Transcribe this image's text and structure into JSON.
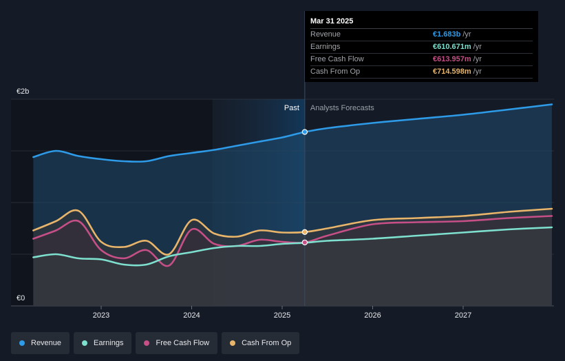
{
  "chart_data": {
    "type": "area",
    "yaxis": {
      "top_label": "€2b",
      "bottom_label": "€0",
      "ylim": [
        0,
        2
      ],
      "unit": "€b"
    },
    "xaxis": {
      "ticks": [
        "2023",
        "2024",
        "2025",
        "2026",
        "2027"
      ],
      "xlim": [
        2022.25,
        2027.98
      ]
    },
    "sections": {
      "past_label": "Past",
      "forecast_label": "Analysts Forecasts",
      "divider_x": 2025.25,
      "highlight_start_x": 2024.23
    },
    "series": [
      {
        "name": "Revenue",
        "color": "#2e9be8",
        "points": [
          [
            2022.25,
            1.44
          ],
          [
            2022.5,
            1.5
          ],
          [
            2022.75,
            1.45
          ],
          [
            2023.0,
            1.42
          ],
          [
            2023.25,
            1.4
          ],
          [
            2023.5,
            1.4
          ],
          [
            2023.75,
            1.45
          ],
          [
            2024.0,
            1.48
          ],
          [
            2024.25,
            1.51
          ],
          [
            2024.5,
            1.55
          ],
          [
            2024.75,
            1.59
          ],
          [
            2025.0,
            1.63
          ],
          [
            2025.25,
            1.683
          ],
          [
            2025.5,
            1.72
          ],
          [
            2026.0,
            1.77
          ],
          [
            2026.5,
            1.81
          ],
          [
            2027.0,
            1.85
          ],
          [
            2027.5,
            1.9
          ],
          [
            2027.98,
            1.95
          ]
        ]
      },
      {
        "name": "Cash From Op",
        "color": "#e8b56a",
        "points": [
          [
            2022.25,
            0.73
          ],
          [
            2022.5,
            0.82
          ],
          [
            2022.75,
            0.92
          ],
          [
            2023.0,
            0.62
          ],
          [
            2023.25,
            0.57
          ],
          [
            2023.5,
            0.63
          ],
          [
            2023.75,
            0.5
          ],
          [
            2024.0,
            0.83
          ],
          [
            2024.25,
            0.7
          ],
          [
            2024.5,
            0.67
          ],
          [
            2024.75,
            0.73
          ],
          [
            2025.0,
            0.71
          ],
          [
            2025.25,
            0.7146
          ],
          [
            2025.5,
            0.75
          ],
          [
            2026.0,
            0.83
          ],
          [
            2026.5,
            0.85
          ],
          [
            2027.0,
            0.87
          ],
          [
            2027.5,
            0.91
          ],
          [
            2027.98,
            0.94
          ]
        ]
      },
      {
        "name": "Free Cash Flow",
        "color": "#c54f86",
        "points": [
          [
            2022.25,
            0.65
          ],
          [
            2022.5,
            0.73
          ],
          [
            2022.75,
            0.82
          ],
          [
            2023.0,
            0.54
          ],
          [
            2023.25,
            0.46
          ],
          [
            2023.5,
            0.54
          ],
          [
            2023.75,
            0.39
          ],
          [
            2024.0,
            0.74
          ],
          [
            2024.25,
            0.6
          ],
          [
            2024.5,
            0.58
          ],
          [
            2024.75,
            0.64
          ],
          [
            2025.0,
            0.62
          ],
          [
            2025.25,
            0.614
          ],
          [
            2025.5,
            0.68
          ],
          [
            2026.0,
            0.79
          ],
          [
            2026.5,
            0.81
          ],
          [
            2027.0,
            0.82
          ],
          [
            2027.5,
            0.85
          ],
          [
            2027.98,
            0.87
          ]
        ]
      },
      {
        "name": "Earnings",
        "color": "#7ee0cf",
        "points": [
          [
            2022.25,
            0.47
          ],
          [
            2022.5,
            0.5
          ],
          [
            2022.75,
            0.46
          ],
          [
            2023.0,
            0.45
          ],
          [
            2023.25,
            0.4
          ],
          [
            2023.5,
            0.4
          ],
          [
            2023.75,
            0.48
          ],
          [
            2024.0,
            0.52
          ],
          [
            2024.25,
            0.56
          ],
          [
            2024.5,
            0.58
          ],
          [
            2024.75,
            0.58
          ],
          [
            2025.0,
            0.6
          ],
          [
            2025.25,
            0.6107
          ],
          [
            2025.5,
            0.63
          ],
          [
            2026.0,
            0.65
          ],
          [
            2026.5,
            0.68
          ],
          [
            2027.0,
            0.71
          ],
          [
            2027.5,
            0.74
          ],
          [
            2027.98,
            0.76
          ]
        ]
      }
    ]
  },
  "tooltip": {
    "date": "Mar 31 2025",
    "rows": [
      {
        "label": "Revenue",
        "value": "€1.683b",
        "unit": "/yr",
        "color": "#2e9be8"
      },
      {
        "label": "Earnings",
        "value": "€610.671m",
        "unit": "/yr",
        "color": "#7ee0cf"
      },
      {
        "label": "Free Cash Flow",
        "value": "€613.957m",
        "unit": "/yr",
        "color": "#c54f86"
      },
      {
        "label": "Cash From Op",
        "value": "€714.598m",
        "unit": "/yr",
        "color": "#e8b56a"
      }
    ]
  },
  "legend": [
    {
      "label": "Revenue",
      "color": "#2e9be8"
    },
    {
      "label": "Earnings",
      "color": "#7ee0cf"
    },
    {
      "label": "Free Cash Flow",
      "color": "#c54f86"
    },
    {
      "label": "Cash From Op",
      "color": "#e8b56a"
    }
  ]
}
